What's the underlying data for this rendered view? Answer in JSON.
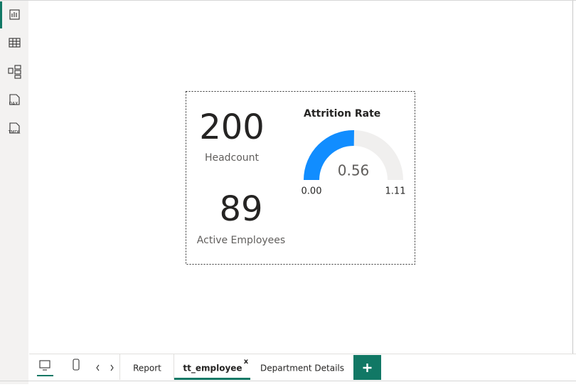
{
  "sidebar": {
    "icons": [
      "DAX",
      "TMDL"
    ]
  },
  "cards": [
    {
      "value": 200,
      "label": "Headcount"
    },
    {
      "value": 89,
      "label": "Active Employees"
    }
  ],
  "gauge": {
    "title": "Attrition Rate",
    "value": 0.56,
    "min": {
      "value": 0,
      "label": "0.00"
    },
    "max": 1.11
  },
  "tabs": [
    "Report",
    "tt_employee",
    "Department Details"
  ],
  "close": "x"
}
